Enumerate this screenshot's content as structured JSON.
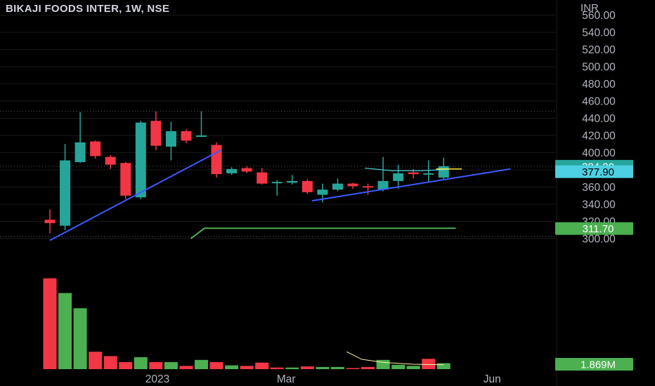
{
  "header": {
    "title": "BIKAJI FOODS INTER, 1W, NSE",
    "currency": "INR"
  },
  "colors": {
    "background": "#000000",
    "up": "#26a69a",
    "down": "#f23645",
    "volume_up": "#4caf50",
    "volume_down": "#f23645",
    "trendline": "#3d5afe",
    "green_line": "#4caf50",
    "cyan_curve": "#4dd0e1",
    "yellow_line": "#ffeb3b",
    "grid": "#1a1a1a",
    "axis_text": "#b2b5be"
  },
  "chart_data": {
    "type": "candlestick",
    "title": "BIKAJI FOODS INTER, 1W, NSE",
    "currency": "INR",
    "price_axis": {
      "ylim": [
        296,
        560
      ],
      "ticks": [
        300,
        320,
        340,
        360,
        380,
        400,
        420,
        440,
        460,
        480,
        500,
        520,
        540,
        560
      ],
      "tick_labels": [
        "300.00",
        "320.00",
        "340.00",
        "360.00",
        "380.00",
        "400.00",
        "420.00",
        "440.00",
        "460.00",
        "480.00",
        "500.00",
        "520.00",
        "540.00",
        "560.00"
      ]
    },
    "time_axis": {
      "labels": [
        {
          "text": "2023",
          "bar": 7.1
        },
        {
          "text": "Mar",
          "bar": 15.6
        },
        {
          "text": "Jun",
          "bar": 29.2
        }
      ]
    },
    "candles": [
      {
        "bar": 0,
        "open": 322,
        "high": 334,
        "low": 306,
        "close": 318
      },
      {
        "bar": 1,
        "open": 315,
        "high": 410,
        "low": 310,
        "close": 391
      },
      {
        "bar": 2,
        "open": 389,
        "high": 447,
        "low": 388,
        "close": 412
      },
      {
        "bar": 3,
        "open": 413,
        "high": 414,
        "low": 393,
        "close": 396
      },
      {
        "bar": 4,
        "open": 395,
        "high": 397,
        "low": 381,
        "close": 386
      },
      {
        "bar": 5,
        "open": 388,
        "high": 389,
        "low": 346,
        "close": 350
      },
      {
        "bar": 6,
        "open": 348,
        "high": 437,
        "low": 346,
        "close": 435
      },
      {
        "bar": 7,
        "open": 437,
        "high": 448,
        "low": 403,
        "close": 408
      },
      {
        "bar": 8,
        "open": 407,
        "high": 436,
        "low": 391,
        "close": 425
      },
      {
        "bar": 9,
        "open": 425,
        "high": 427,
        "low": 411,
        "close": 414
      },
      {
        "bar": 10,
        "open": 419,
        "high": 448,
        "low": 418,
        "close": 420
      },
      {
        "bar": 11,
        "open": 409,
        "high": 412,
        "low": 371,
        "close": 375
      },
      {
        "bar": 12,
        "open": 376,
        "high": 383,
        "low": 374,
        "close": 381
      },
      {
        "bar": 13,
        "open": 382,
        "high": 384,
        "low": 376,
        "close": 378
      },
      {
        "bar": 14,
        "open": 377,
        "high": 382,
        "low": 363,
        "close": 364
      },
      {
        "bar": 15,
        "open": 365,
        "high": 368,
        "low": 350,
        "close": 366
      },
      {
        "bar": 16,
        "open": 365,
        "high": 374,
        "low": 363,
        "close": 367
      },
      {
        "bar": 17,
        "open": 367,
        "high": 369,
        "low": 352,
        "close": 354
      },
      {
        "bar": 18,
        "open": 351,
        "high": 364,
        "low": 342,
        "close": 357
      },
      {
        "bar": 19,
        "open": 357,
        "high": 370,
        "low": 355,
        "close": 364
      },
      {
        "bar": 20,
        "open": 364,
        "high": 365,
        "low": 358,
        "close": 361
      },
      {
        "bar": 21,
        "open": 361,
        "high": 364,
        "low": 351,
        "close": 360
      },
      {
        "bar": 22,
        "open": 357,
        "high": 395,
        "low": 355,
        "close": 367
      },
      {
        "bar": 23,
        "open": 367,
        "high": 386,
        "low": 358,
        "close": 376
      },
      {
        "bar": 24,
        "open": 377,
        "high": 381,
        "low": 370,
        "close": 375
      },
      {
        "bar": 25,
        "open": 375,
        "high": 391,
        "low": 366,
        "close": 376
      },
      {
        "bar": 26,
        "open": 371,
        "high": 394,
        "low": 368,
        "close": 384.2
      }
    ],
    "volume": {
      "unit": "M",
      "bars": [
        {
          "bar": 0,
          "value": 8.35,
          "direction": "down"
        },
        {
          "bar": 1,
          "value": 7.0,
          "direction": "up"
        },
        {
          "bar": 2,
          "value": 5.6,
          "direction": "up"
        },
        {
          "bar": 3,
          "value": 1.6,
          "direction": "down"
        },
        {
          "bar": 4,
          "value": 1.2,
          "direction": "down"
        },
        {
          "bar": 5,
          "value": 0.65,
          "direction": "down"
        },
        {
          "bar": 6,
          "value": 1.1,
          "direction": "up"
        },
        {
          "bar": 7,
          "value": 0.65,
          "direction": "down"
        },
        {
          "bar": 8,
          "value": 0.65,
          "direction": "up"
        },
        {
          "bar": 9,
          "value": 0.3,
          "direction": "down"
        },
        {
          "bar": 10,
          "value": 0.85,
          "direction": "up"
        },
        {
          "bar": 11,
          "value": 0.65,
          "direction": "down"
        },
        {
          "bar": 12,
          "value": 0.35,
          "direction": "up"
        },
        {
          "bar": 13,
          "value": 0.3,
          "direction": "down"
        },
        {
          "bar": 14,
          "value": 0.6,
          "direction": "down"
        },
        {
          "bar": 15,
          "value": 0.15,
          "direction": "down"
        },
        {
          "bar": 16,
          "value": 0.15,
          "direction": "up"
        },
        {
          "bar": 17,
          "value": 0.25,
          "direction": "down"
        },
        {
          "bar": 18,
          "value": 0.2,
          "direction": "up"
        },
        {
          "bar": 19,
          "value": 0.2,
          "direction": "up"
        },
        {
          "bar": 20,
          "value": 0.1,
          "direction": "down"
        },
        {
          "bar": 21,
          "value": 0.2,
          "direction": "down"
        },
        {
          "bar": 22,
          "value": 0.85,
          "direction": "up"
        },
        {
          "bar": 23,
          "value": 0.4,
          "direction": "up"
        },
        {
          "bar": 24,
          "value": 0.3,
          "direction": "up"
        },
        {
          "bar": 25,
          "value": 0.95,
          "direction": "down"
        },
        {
          "bar": 26,
          "value": 0.55,
          "direction": "up"
        }
      ]
    },
    "price_badges": [
      {
        "label": "384.20",
        "value": 384.2,
        "color": "#26a69a"
      },
      {
        "label": "377.90",
        "value": 377.9,
        "color": "#4dd0e1"
      },
      {
        "label": "311.70",
        "value": 311.7,
        "color": "#4caf50"
      },
      {
        "label": "1.869M",
        "color": "#4caf50",
        "position": "volume"
      }
    ],
    "horizontal_levels": [
      {
        "value": 448,
        "style": "dotted"
      },
      {
        "value": 384.2,
        "style": "dotted"
      },
      {
        "value": 302,
        "style": "dotted"
      }
    ],
    "drawings": {
      "trendlines": [
        {
          "from": {
            "bar": 0,
            "price": 298
          },
          "to": {
            "bar": 11.3,
            "price": 403
          }
        },
        {
          "from": {
            "bar": 17.3,
            "price": 344
          },
          "to": {
            "bar": 30.4,
            "price": 381
          }
        }
      ],
      "green_polyline": [
        {
          "bar": 9.3,
          "price": 300
        },
        {
          "bar": 10.2,
          "price": 312
        },
        {
          "bar": 26.8,
          "price": 312
        }
      ],
      "cyan_curve": [
        {
          "bar": 20.8,
          "price": 382
        },
        {
          "bar": 22.6,
          "price": 379
        },
        {
          "bar": 24.5,
          "price": 379
        },
        {
          "bar": 26.3,
          "price": 380.5
        }
      ],
      "yellow_segment": [
        {
          "bar": 25.5,
          "price": 381
        },
        {
          "bar": 27.2,
          "price": 381
        }
      ],
      "volume_curve": [
        {
          "bar": 19.6,
          "value": 1.6
        },
        {
          "bar": 20.6,
          "value": 0.9
        },
        {
          "bar": 22,
          "value": 0.62
        },
        {
          "bar": 24,
          "value": 0.45
        },
        {
          "bar": 26,
          "value": 0.4
        }
      ]
    }
  }
}
